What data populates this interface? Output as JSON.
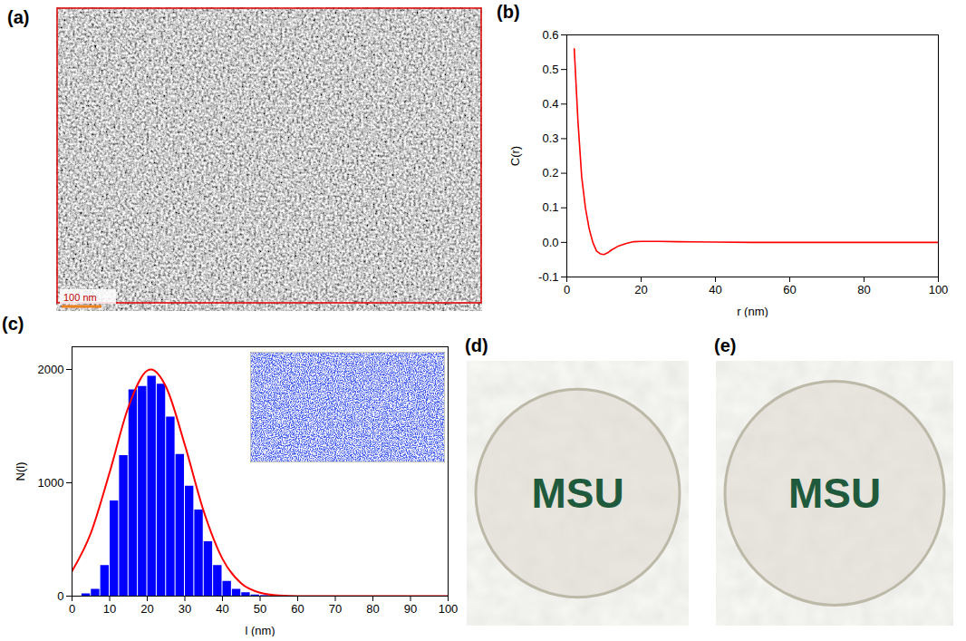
{
  "chart_data": [
    {
      "panel_label": "(b)",
      "type": "line",
      "x_label": "r (nm)",
      "y_label": "C(r)",
      "color": "#ff0000",
      "x": [
        2,
        3,
        4,
        5,
        6,
        7,
        8,
        9,
        10,
        11,
        12,
        14,
        16,
        18,
        20,
        25,
        30,
        40,
        50,
        60,
        70,
        80,
        90,
        100
      ],
      "values": [
        0.56,
        0.35,
        0.19,
        0.1,
        0.04,
        0.0,
        -0.025,
        -0.033,
        -0.035,
        -0.03,
        -0.022,
        -0.01,
        -0.003,
        0.002,
        0.003,
        0.003,
        0.002,
        0.001,
        0,
        0,
        0,
        0,
        0,
        0
      ],
      "xlim": [
        0,
        100
      ],
      "xticks": [
        0,
        20,
        40,
        60,
        80,
        100
      ],
      "ylim": [
        -0.1,
        0.6
      ],
      "yticks": [
        -0.1,
        {
          "value": 0,
          "label": "0.0"
        },
        0.1,
        0.2,
        0.3,
        0.4,
        0.5,
        0.6
      ]
    },
    {
      "panel_label": "(c)",
      "type": "histogram",
      "x_label": "l (nm)",
      "y_label": "N(l)",
      "color": "#0000ff",
      "bins": [
        2.5,
        5,
        7.5,
        10,
        12.5,
        15,
        17.5,
        20,
        22.5,
        25,
        27.5,
        30,
        32.5,
        35,
        37.5,
        40,
        42.5,
        45,
        47.5,
        50,
        52.5
      ],
      "counts": [
        20,
        60,
        270,
        840,
        1240,
        1820,
        1850,
        1940,
        1870,
        1580,
        1250,
        970,
        760,
        480,
        270,
        130,
        60,
        30,
        10,
        5
      ],
      "fit": {
        "type": "line",
        "color": "#ff0000",
        "x": [
          0,
          5,
          10,
          15,
          20,
          21,
          25,
          30,
          35,
          40,
          45,
          50,
          55,
          60,
          70,
          80,
          90,
          100
        ],
        "values": [
          220,
          556,
          1092,
          1670,
          1990,
          2000,
          1846,
          1334,
          750,
          329,
          112,
          30,
          6,
          1,
          0,
          0,
          0,
          0
        ]
      },
      "xlim": [
        0,
        100
      ],
      "xticks": [
        0,
        10,
        20,
        30,
        40,
        50,
        60,
        70,
        80,
        90,
        100
      ],
      "ylim": [
        0,
        2200
      ],
      "yticks": [
        0,
        1000,
        2000
      ]
    }
  ],
  "images": [
    {
      "panel_label": "(a)",
      "scale_bar": "100 nm"
    },
    {
      "panel_label": "(d)",
      "text": "MSU"
    },
    {
      "panel_label": "(e)",
      "text": "MSU"
    }
  ]
}
